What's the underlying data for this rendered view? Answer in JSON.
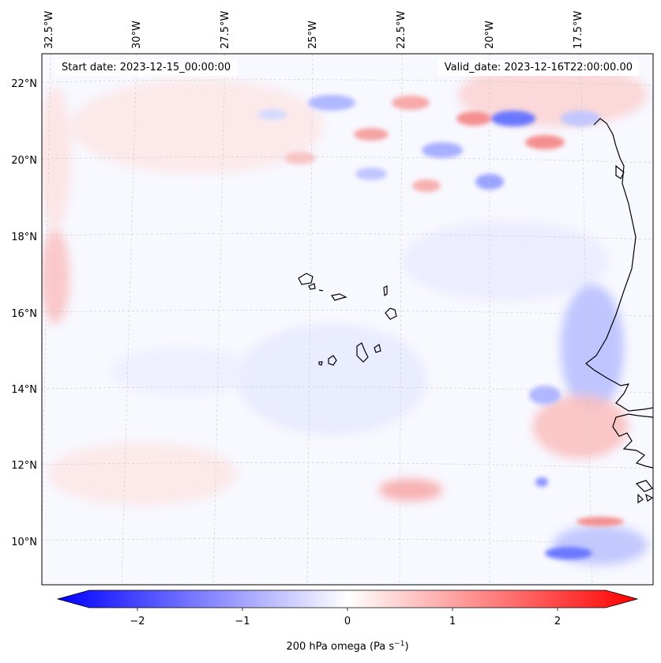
{
  "header": {
    "start_date": "Start date: 2023-12-15_00:00:00",
    "valid_date": "Valid_date: 2023-12-16T22:00:00.00"
  },
  "axes": {
    "lon_labels": [
      "32.5°W",
      "30°W",
      "27.5°W",
      "25°W",
      "22.5°W",
      "20°W",
      "17.5°W"
    ],
    "lat_labels": [
      "22°N",
      "20°N",
      "18°N",
      "16°N",
      "14°N",
      "12°N",
      "10°N"
    ]
  },
  "colorbar": {
    "ticks": [
      "−2",
      "−1",
      "0",
      "1",
      "2"
    ],
    "label": "200 hPa omega (Pa s",
    "label_sup": "−1",
    "label_tail": ")",
    "range": [
      -2.6,
      2.6
    ],
    "colormap": "bwr"
  },
  "colors": {
    "negative": "#0000ff",
    "neutral": "#ffffff",
    "positive": "#ff0000",
    "coastline": "#000000",
    "gridline": "#c8c8c8"
  }
}
